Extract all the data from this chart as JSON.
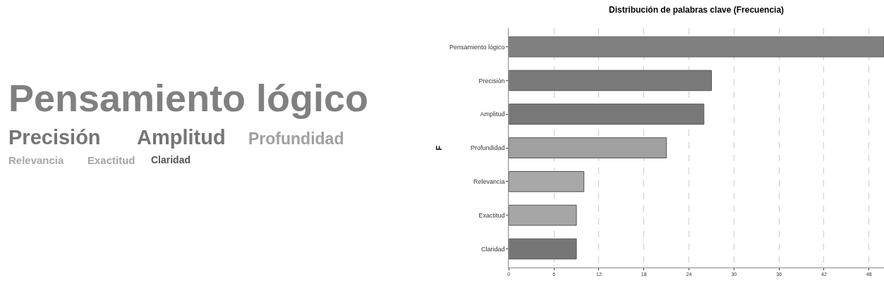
{
  "chart_data": [
    {
      "type": "other",
      "annotations": [
        "Pensamiento lógico",
        "Precisión",
        "Amplitud",
        "Profundidad",
        "Relevancia",
        "Exactitud",
        "Claridad"
      ]
    },
    {
      "type": "bar",
      "orientation": "horizontal",
      "title": "Distribución de palabras clave (Frecuencia)",
      "ylabel": "F",
      "categories": [
        "Pensamiento lógico",
        "Precisión",
        "Amplitud",
        "Profundidad",
        "Relevancia",
        "Exactitud",
        "Claridad"
      ],
      "values": [
        50,
        27,
        26,
        21,
        10,
        9,
        9
      ],
      "colors": [
        "#808080",
        "#7a7a7a",
        "#787878",
        "#a0a0a0",
        "#a8a8a8",
        "#a6a6a6",
        "#767676"
      ],
      "xlim": [
        0,
        50
      ],
      "xticks": [
        0,
        6,
        12,
        18,
        24,
        30,
        36,
        42,
        48
      ],
      "grid": "x"
    }
  ]
}
